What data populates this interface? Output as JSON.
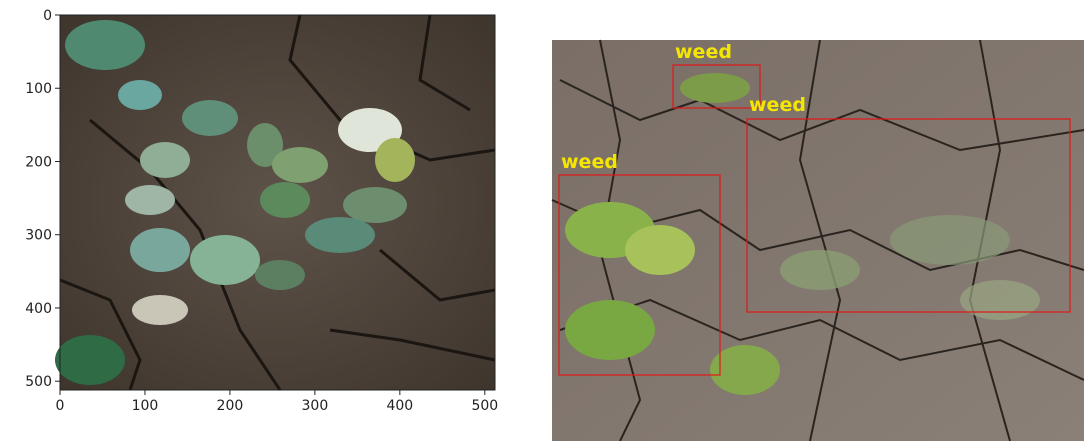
{
  "left_image": {
    "xlim": [
      0,
      512
    ],
    "ylim": [
      512,
      0
    ],
    "xticks": [
      0,
      100,
      200,
      300,
      400,
      500
    ],
    "yticks": [
      0,
      100,
      200,
      300,
      400,
      500
    ]
  },
  "detections": [
    {
      "label": "weed"
    },
    {
      "label": "weed"
    },
    {
      "label": "weed"
    }
  ]
}
